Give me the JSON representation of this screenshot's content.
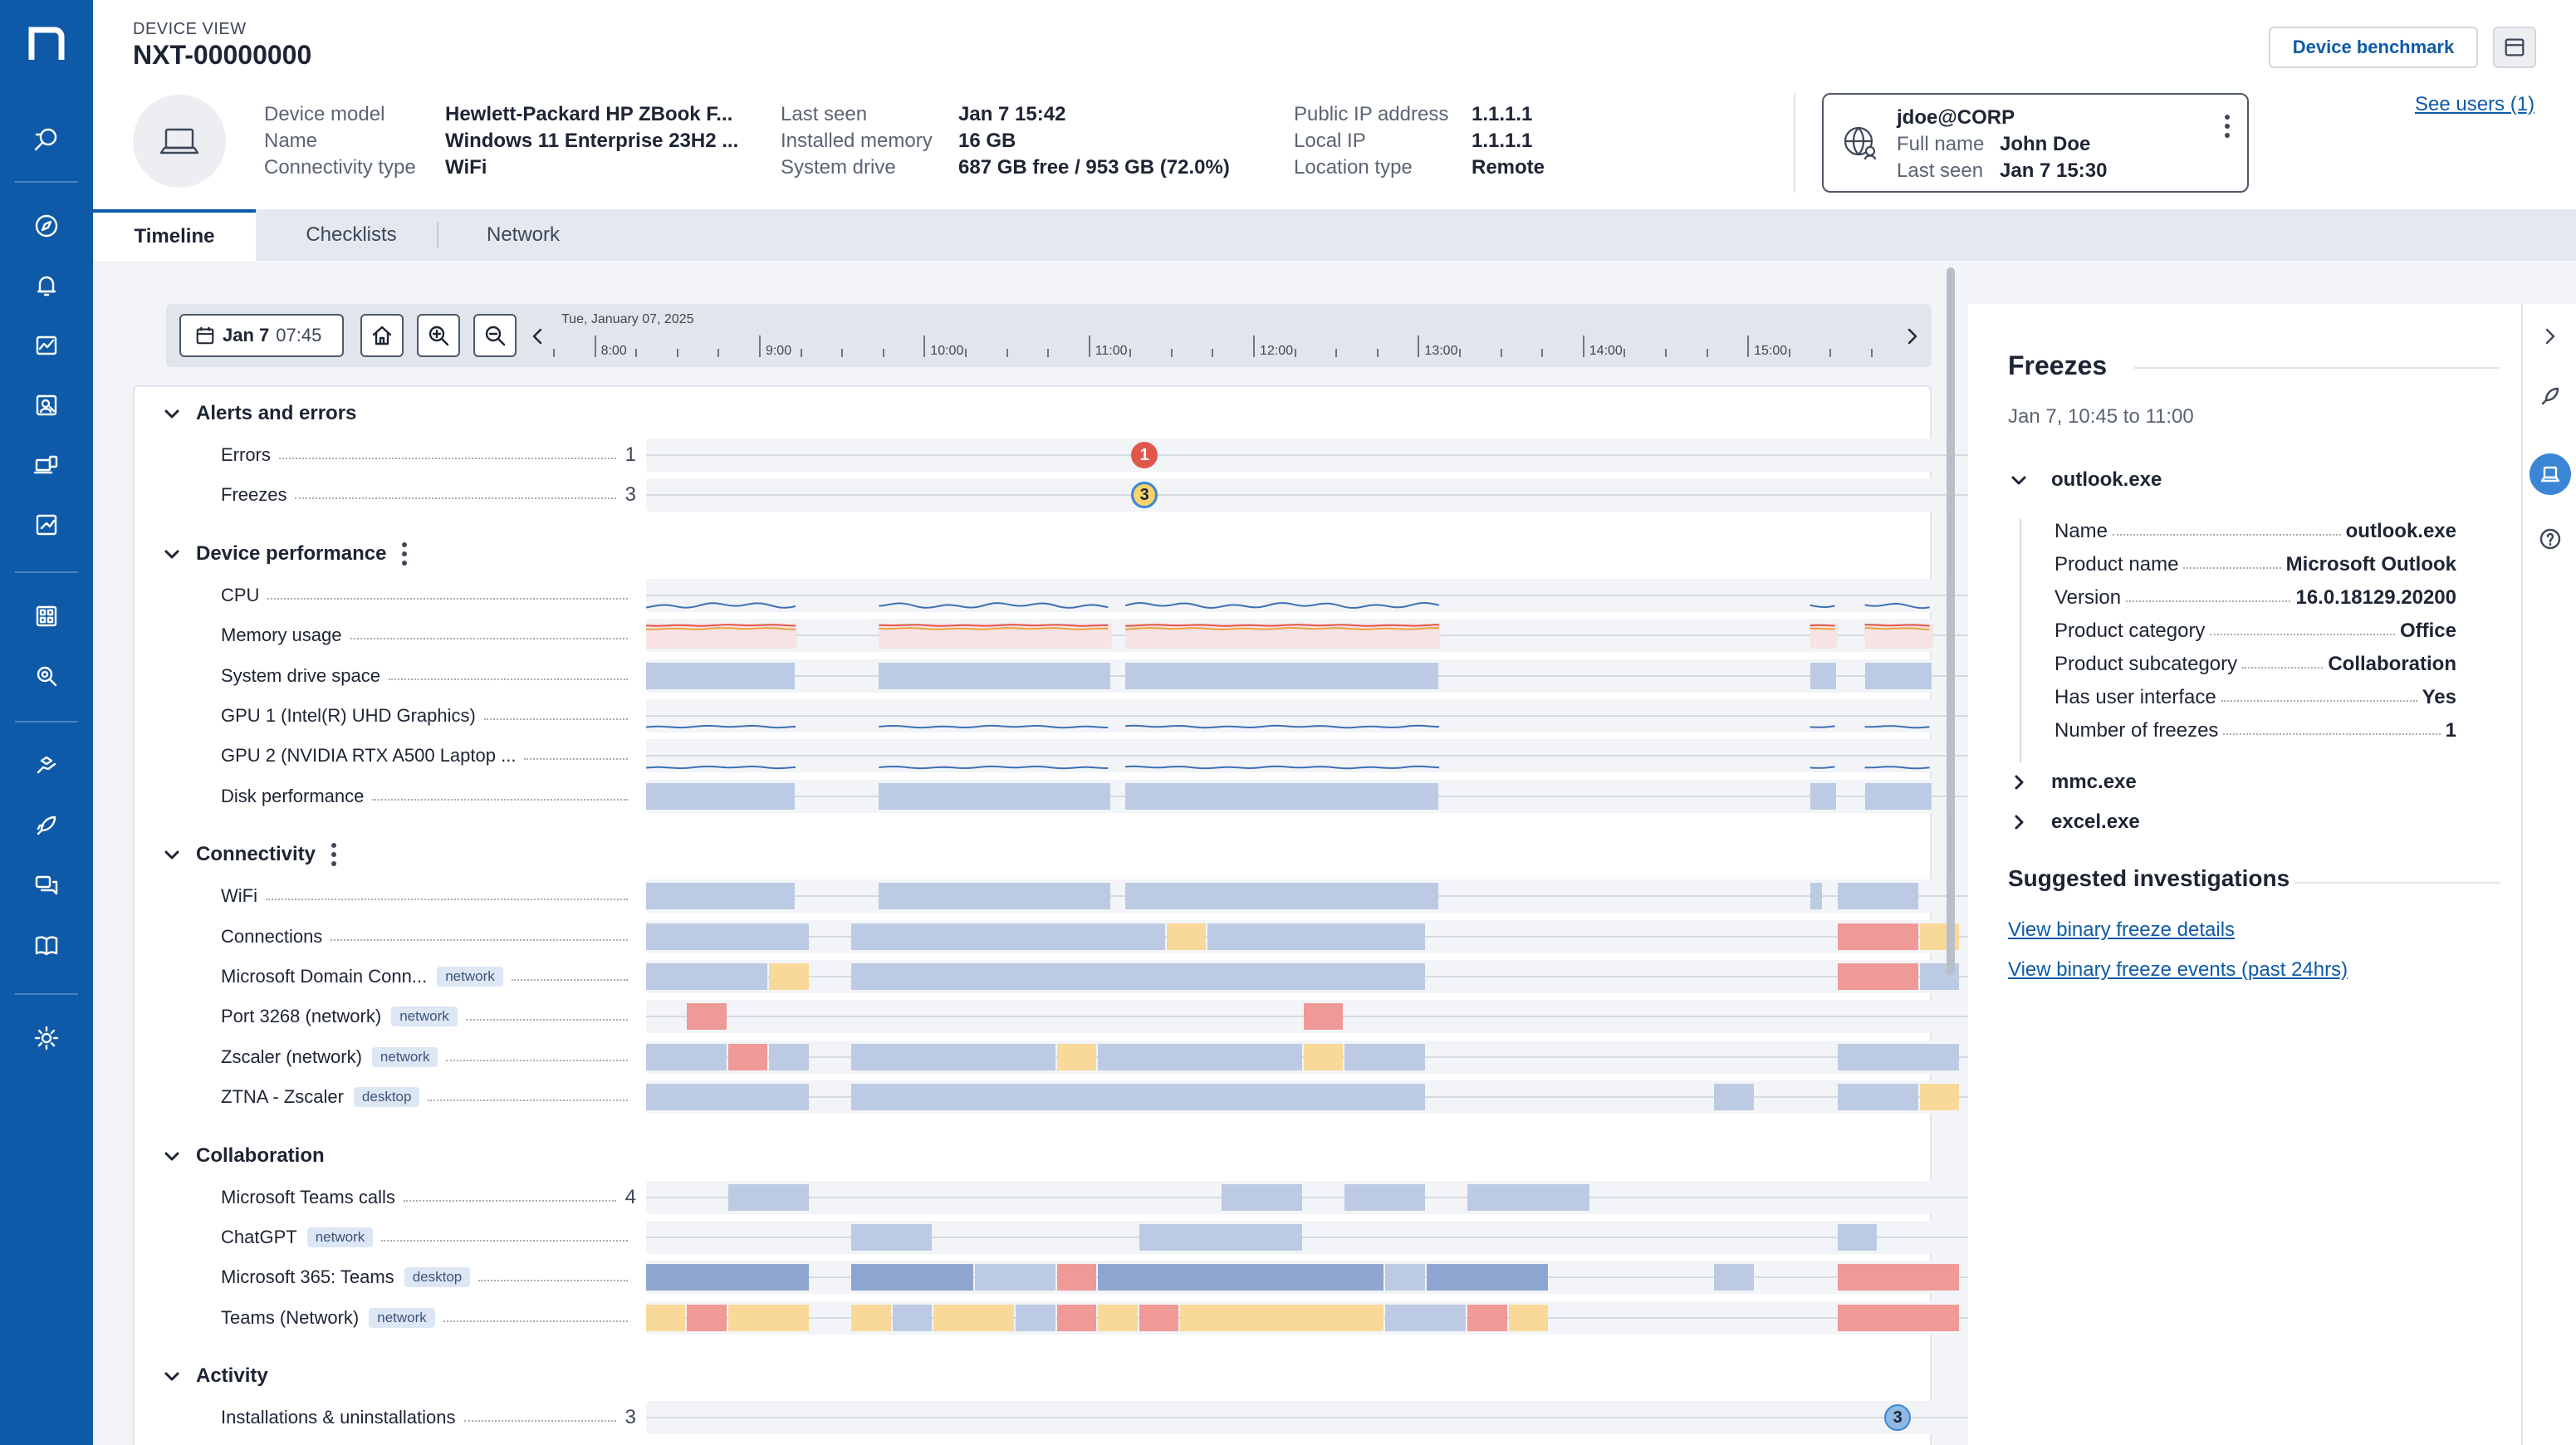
{
  "nav": {
    "items": [
      "search-icon",
      "compass-icon",
      "bell-icon",
      "chart-icon",
      "people-search-icon",
      "devices-icon",
      "tablet-icon",
      "apps-grid-icon",
      "inspect-icon",
      "hands-icon",
      "rocket-icon",
      "chat-icon",
      "book-icon",
      "gear-icon"
    ]
  },
  "header": {
    "section_label": "DEVICE VIEW",
    "device_name": "NXT-00000000",
    "props_col1": [
      {
        "k": "Device model",
        "v": "Hewlett-Packard HP ZBook F..."
      },
      {
        "k": "Name",
        "v": "Windows 11 Enterprise 23H2 ..."
      },
      {
        "k": "Connectivity type",
        "v": "WiFi"
      }
    ],
    "props_col2": [
      {
        "k": "Last seen",
        "v": "Jan 7 15:42"
      },
      {
        "k": "Installed memory",
        "v": "16 GB"
      },
      {
        "k": "System drive",
        "v": "687 GB free / 953 GB (72.0%)"
      }
    ],
    "props_col3": [
      {
        "k": "Public IP address",
        "v": "1.1.1.1"
      },
      {
        "k": "Local IP",
        "v": "1.1.1.1"
      },
      {
        "k": "Location type",
        "v": "Remote"
      }
    ],
    "user": {
      "account": "jdoe@CORP",
      "full_name_label": "Full name",
      "full_name": "John Doe",
      "last_seen_label": "Last seen",
      "last_seen": "Jan 7 15:30"
    },
    "benchmark_label": "Device benchmark",
    "see_users": "See users (1)"
  },
  "tabs": [
    {
      "label": "Timeline",
      "active": true
    },
    {
      "label": "Checklists",
      "active": false
    },
    {
      "label": "Network",
      "active": false
    }
  ],
  "timeline": {
    "date_day": "Jan 7",
    "date_time": "07:45",
    "full_date": "Tue, January 07, 2025",
    "hours": [
      "8:00",
      "9:00",
      "10:00",
      "11:00",
      "12:00",
      "13:00",
      "14:00",
      "15:00"
    ],
    "colors": {
      "normal": "#bccbe3",
      "heavy": "#8ea6cf",
      "warning": "#f8d99a",
      "critical": "#ef9a97",
      "error_marker": "#e2574c",
      "freeze_marker": "#f8d36a"
    },
    "sections": [
      {
        "title": "Alerts and errors",
        "menu": false,
        "rows": [
          {
            "label": "Errors",
            "count": "1",
            "marker": {
              "type": "err",
              "time": "10:47",
              "text": "1"
            }
          },
          {
            "label": "Freezes",
            "count": "3",
            "marker": {
              "type": "frz",
              "time": "10:47",
              "text": "3"
            }
          }
        ]
      },
      {
        "title": "Device performance",
        "menu": true,
        "rows": [
          {
            "label": "CPU",
            "wave": "cpu"
          },
          {
            "label": "Memory usage",
            "wave": "mem"
          },
          {
            "label": "System drive space",
            "segs": [
              [
                "07:45",
                "08:40",
                "blue"
              ],
              [
                "09:10",
                "10:35",
                "blue"
              ],
              [
                "10:40",
                "12:35",
                "blue"
              ],
              [
                "14:50",
                "15:00",
                "blue"
              ],
              [
                "15:10",
                "15:35",
                "blue"
              ]
            ]
          },
          {
            "label": "GPU 1 (Intel(R) UHD Graphics)",
            "wave": "gpu1"
          },
          {
            "label": "GPU 2 (NVIDIA RTX A500 Laptop ...",
            "wave": "gpu2"
          },
          {
            "label": "Disk performance",
            "segs": [
              [
                "07:45",
                "08:40",
                "blue"
              ],
              [
                "09:10",
                "10:35",
                "blue"
              ],
              [
                "10:40",
                "12:35",
                "blue"
              ],
              [
                "14:50",
                "15:00",
                "blue"
              ],
              [
                "15:10",
                "15:35",
                "blue"
              ]
            ]
          }
        ]
      },
      {
        "title": "Connectivity",
        "menu": true,
        "rows": [
          {
            "label": "WiFi",
            "segs": [
              [
                "07:45",
                "08:40",
                "blue"
              ],
              [
                "09:10",
                "10:35",
                "blue"
              ],
              [
                "10:40",
                "12:35",
                "blue"
              ],
              [
                "14:50",
                "14:55",
                "blue"
              ],
              [
                "15:00",
                "15:30",
                "blue"
              ]
            ]
          },
          {
            "label": "Connections",
            "segs": [
              [
                "07:45",
                "08:45",
                "blue"
              ],
              [
                "09:00",
                "10:55",
                "blue"
              ],
              [
                "10:55",
                "11:10",
                "yellow"
              ],
              [
                "11:10",
                "12:30",
                "blue"
              ],
              [
                "15:00",
                "15:30",
                "red"
              ],
              [
                "15:30",
                "15:45",
                "yellow"
              ]
            ]
          },
          {
            "label": "Microsoft Domain Conn...",
            "tag": "network",
            "segs": [
              [
                "07:45",
                "08:30",
                "blue"
              ],
              [
                "08:30",
                "08:45",
                "yellow"
              ],
              [
                "09:00",
                "12:30",
                "blue"
              ],
              [
                "15:00",
                "15:30",
                "red"
              ],
              [
                "15:30",
                "15:45",
                "blue"
              ]
            ]
          },
          {
            "label": "Port 3268 (network)",
            "tag": "network",
            "segs": [
              [
                "08:00",
                "08:15",
                "red"
              ],
              [
                "11:45",
                "12:00",
                "red"
              ]
            ]
          },
          {
            "label": "Zscaler (network)",
            "tag": "network",
            "segs": [
              [
                "07:45",
                "08:15",
                "blue"
              ],
              [
                "08:15",
                "08:30",
                "red"
              ],
              [
                "08:30",
                "08:45",
                "blue"
              ],
              [
                "09:00",
                "10:15",
                "blue"
              ],
              [
                "10:15",
                "10:30",
                "yellow"
              ],
              [
                "10:30",
                "11:45",
                "blue"
              ],
              [
                "11:45",
                "12:00",
                "yellow"
              ],
              [
                "12:00",
                "12:30",
                "blue"
              ],
              [
                "15:00",
                "15:45",
                "blue"
              ]
            ]
          },
          {
            "label": "ZTNA - Zscaler",
            "tag": "desktop",
            "segs": [
              [
                "07:45",
                "08:45",
                "blue"
              ],
              [
                "09:00",
                "12:30",
                "blue"
              ],
              [
                "14:15",
                "14:30",
                "blue"
              ],
              [
                "15:00",
                "15:30",
                "blue"
              ],
              [
                "15:30",
                "15:45",
                "yellow"
              ]
            ]
          }
        ]
      },
      {
        "title": "Collaboration",
        "menu": false,
        "rows": [
          {
            "label": "Microsoft Teams calls",
            "count": "4",
            "segs": [
              [
                "08:15",
                "08:45",
                "blue"
              ],
              [
                "11:15",
                "11:45",
                "blue"
              ],
              [
                "12:00",
                "12:30",
                "blue"
              ],
              [
                "12:45",
                "13:30",
                "blue"
              ]
            ]
          },
          {
            "label": "ChatGPT",
            "tag": "network",
            "segs": [
              [
                "09:00",
                "09:30",
                "blue"
              ],
              [
                "10:45",
                "11:45",
                "blue"
              ],
              [
                "15:00",
                "15:15",
                "blue"
              ]
            ]
          },
          {
            "label": "Microsoft 365: Teams",
            "tag": "desktop",
            "segs": [
              [
                "07:45",
                "08:45",
                "dblue"
              ],
              [
                "09:00",
                "09:45",
                "dblue"
              ],
              [
                "09:45",
                "10:15",
                "blue"
              ],
              [
                "10:15",
                "10:30",
                "red"
              ],
              [
                "10:30",
                "12:15",
                "dblue"
              ],
              [
                "12:15",
                "12:30",
                "blue"
              ],
              [
                "12:30",
                "13:15",
                "dblue"
              ],
              [
                "14:15",
                "14:30",
                "blue"
              ],
              [
                "15:00",
                "15:45",
                "red"
              ]
            ]
          },
          {
            "label": "Teams (Network)",
            "tag": "network",
            "segs": [
              [
                "07:45",
                "08:00",
                "yellow"
              ],
              [
                "08:00",
                "08:15",
                "red"
              ],
              [
                "08:15",
                "08:45",
                "yellow"
              ],
              [
                "09:00",
                "09:15",
                "yellow"
              ],
              [
                "09:15",
                "09:30",
                "blue"
              ],
              [
                "09:30",
                "10:00",
                "yellow"
              ],
              [
                "10:00",
                "10:15",
                "blue"
              ],
              [
                "10:15",
                "10:30",
                "red"
              ],
              [
                "10:30",
                "10:45",
                "yellow"
              ],
              [
                "10:45",
                "11:00",
                "red"
              ],
              [
                "11:00",
                "12:15",
                "yellow"
              ],
              [
                "12:15",
                "12:45",
                "blue"
              ],
              [
                "12:45",
                "13:00",
                "red"
              ],
              [
                "13:00",
                "13:15",
                "yellow"
              ],
              [
                "15:00",
                "15:45",
                "red"
              ]
            ]
          }
        ]
      },
      {
        "title": "Activity",
        "menu": false,
        "rows": [
          {
            "label": "Installations & uninstallations",
            "count": "3",
            "marker": {
              "type": "inst",
              "time": "15:22",
              "text": "3"
            }
          }
        ]
      }
    ]
  },
  "detail": {
    "title": "Freezes",
    "range": "Jan 7, 10:45 to 11:00",
    "processes": [
      {
        "name": "outlook.exe",
        "expanded": true,
        "props": [
          {
            "k": "Name",
            "v": "outlook.exe"
          },
          {
            "k": "Product name",
            "v": "Microsoft Outlook"
          },
          {
            "k": "Version",
            "v": "16.0.18129.20200"
          },
          {
            "k": "Product category",
            "v": "Office"
          },
          {
            "k": "Product subcategory",
            "v": "Collaboration"
          },
          {
            "k": "Has user interface",
            "v": "Yes"
          },
          {
            "k": "Number of freezes",
            "v": "1"
          }
        ]
      },
      {
        "name": "mmc.exe",
        "expanded": false
      },
      {
        "name": "excel.exe",
        "expanded": false
      }
    ],
    "suggested_title": "Suggested investigations",
    "links": [
      "View binary freeze details",
      "View binary freeze events (past 24hrs)"
    ]
  },
  "rail": [
    "chevron-right-icon",
    "rocket-icon",
    "device-icon",
    "help-icon"
  ]
}
